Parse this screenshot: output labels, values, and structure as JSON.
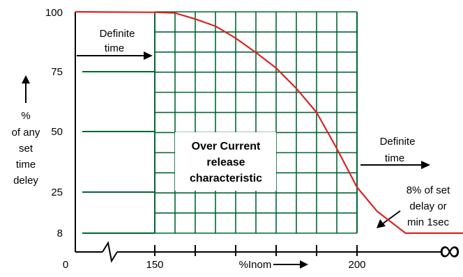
{
  "chart_data": {
    "type": "line",
    "x_ticks": [
      "0",
      "150",
      "200"
    ],
    "x_infinity_symbol": "∞",
    "x_axis_label": "%Inom",
    "y_ticks": [
      100,
      75,
      50,
      25,
      8
    ],
    "y_label_symbol": "%",
    "y_label_lines": [
      "of any",
      "set",
      "time",
      "deley"
    ],
    "series": [
      {
        "points": [
          [
            0,
            100
          ],
          [
            150,
            99.8
          ],
          [
            155,
            99.5
          ],
          [
            160,
            97
          ],
          [
            165,
            94
          ],
          [
            170,
            89
          ],
          [
            175,
            83
          ],
          [
            180,
            76.5
          ],
          [
            185,
            68
          ],
          [
            190,
            58
          ],
          [
            195,
            43
          ],
          [
            200,
            27
          ],
          [
            205,
            17
          ],
          [
            212,
            8
          ],
          [
            250,
            8
          ]
        ]
      }
    ],
    "grid": {
      "x_start": 150,
      "x_end": 200,
      "y_lines": [
        8,
        25,
        50,
        75,
        100
      ]
    },
    "center_box_lines": [
      "Over Current",
      "release",
      "characteristic"
    ],
    "annotations": {
      "definite_time_left": [
        "Definite",
        "time"
      ],
      "definite_time_right": [
        "Definite",
        "time"
      ],
      "min_note": [
        "8% of set",
        "delay or",
        "min 1sec"
      ]
    },
    "colors": {
      "grid": "#006633",
      "curve": "#dd2222",
      "axis": "#000000"
    }
  }
}
